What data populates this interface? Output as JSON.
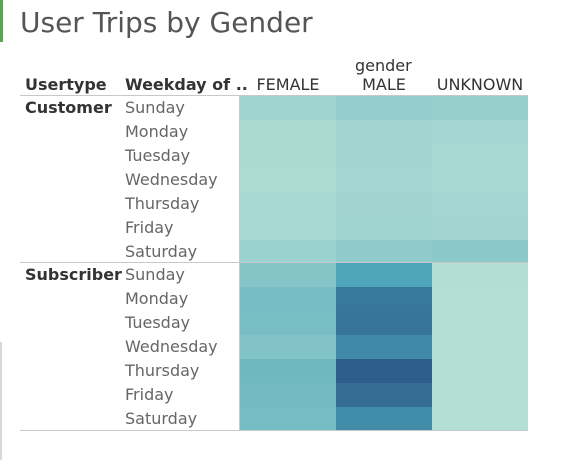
{
  "title": "User Trips by Gender",
  "headers": {
    "usertype": "Usertype",
    "weekday": "Weekday of ..",
    "gender": "gender"
  },
  "colors": {
    "scale_low": "#b9e2d6",
    "scale_high": "#2a5585",
    "accent_bar": "#5fa05a"
  },
  "chart_data": {
    "type": "heatmap",
    "title": "User Trips by Gender",
    "column_field": "gender",
    "columns": [
      "FEMALE",
      "MALE",
      "UNKNOWN"
    ],
    "row_fields": [
      "Usertype",
      "Weekday of .."
    ],
    "groups": [
      {
        "name": "Customer",
        "rows": [
          "Sunday",
          "Monday",
          "Tuesday",
          "Wednesday",
          "Thursday",
          "Friday",
          "Saturday"
        ],
        "values": [
          [
            0.14,
            0.2,
            0.18
          ],
          [
            0.08,
            0.12,
            0.11
          ],
          [
            0.08,
            0.12,
            0.1
          ],
          [
            0.07,
            0.11,
            0.09
          ],
          [
            0.09,
            0.13,
            0.11
          ],
          [
            0.09,
            0.14,
            0.12
          ],
          [
            0.16,
            0.22,
            0.25
          ]
        ]
      },
      {
        "name": "Subscriber",
        "rows": [
          "Sunday",
          "Monday",
          "Tuesday",
          "Wednesday",
          "Thursday",
          "Friday",
          "Saturday"
        ],
        "values": [
          [
            0.28,
            0.58,
            0.04
          ],
          [
            0.35,
            0.82,
            0.03
          ],
          [
            0.34,
            0.84,
            0.03
          ],
          [
            0.3,
            0.73,
            0.03
          ],
          [
            0.4,
            0.96,
            0.03
          ],
          [
            0.38,
            0.88,
            0.03
          ],
          [
            0.36,
            0.72,
            0.03
          ]
        ]
      }
    ]
  }
}
